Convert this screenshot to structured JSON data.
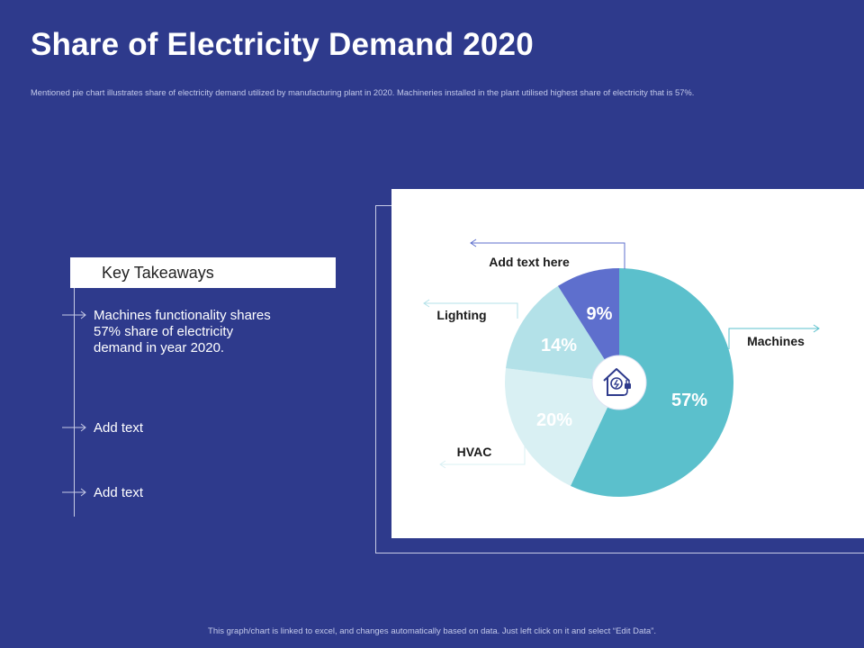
{
  "page": {
    "title": "Share of Electricity Demand 2020",
    "subtitle": "Mentioned pie chart illustrates share of electricity demand utilized by manufacturing plant in 2020. Machineries installed in the plant utilised highest share of electricity that is 57%.",
    "footer": "This graph/chart is linked to excel, and changes automatically based on data. Just left click on it and select “Edit Data”."
  },
  "takeaways": {
    "heading": "Key Takeaways",
    "items": [
      "Machines functionality shares 57% share of electricity demand in year 2020.",
      "Add text",
      "Add text"
    ]
  },
  "colors": {
    "background": "#2e3a8c",
    "machines": "#5bc0cc",
    "hvac": "#d9f0f3",
    "lighting": "#b3e1e8",
    "other": "#5e6fcd"
  },
  "center_icon": "house-plug-icon",
  "chart_data": {
    "type": "pie",
    "title": "",
    "slices": [
      {
        "label": "Machines",
        "value": 57,
        "display": "57%",
        "color": "#5bc0cc"
      },
      {
        "label": "HVAC",
        "value": 20,
        "display": "20%",
        "color": "#d9f0f3"
      },
      {
        "label": "Lighting",
        "value": 14,
        "display": "14%",
        "color": "#b3e1e8"
      },
      {
        "label": "Add text here",
        "value": 9,
        "display": "9%",
        "color": "#5e6fcd"
      }
    ]
  }
}
